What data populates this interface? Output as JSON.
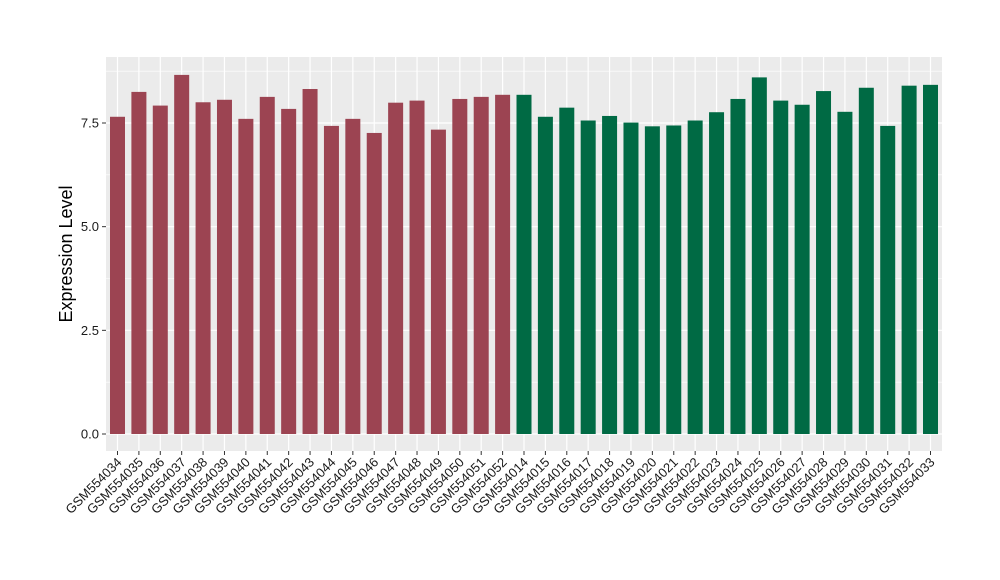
{
  "chart_data": {
    "type": "bar",
    "title": "",
    "xlabel": "",
    "ylabel": "Expression Level",
    "ylim": [
      0,
      8.9
    ],
    "y_ticks": [
      0,
      2.5,
      5,
      7.5
    ],
    "y_tick_labels": [
      "0.0",
      "2.5",
      "5.0",
      "7.5"
    ],
    "grid": true,
    "legend": "none",
    "background": "#ebebeb",
    "grid_color": "#ffffff",
    "categories": [
      "GSM554034",
      "GSM554035",
      "GSM554036",
      "GSM554037",
      "GSM554038",
      "GSM554039",
      "GSM554040",
      "GSM554041",
      "GSM554042",
      "GSM554043",
      "GSM554044",
      "GSM554045",
      "GSM554046",
      "GSM554047",
      "GSM554048",
      "GSM554049",
      "GSM554050",
      "GSM554051",
      "GSM554052",
      "GSM554014",
      "GSM554015",
      "GSM554016",
      "GSM554017",
      "GSM554018",
      "GSM554019",
      "GSM554020",
      "GSM554021",
      "GSM554022",
      "GSM554023",
      "GSM554024",
      "GSM554025",
      "GSM554026",
      "GSM554027",
      "GSM554028",
      "GSM554029",
      "GSM554030",
      "GSM554031",
      "GSM554032",
      "GSM554033"
    ],
    "values": [
      7.65,
      8.25,
      7.92,
      8.66,
      8.0,
      8.06,
      7.6,
      8.13,
      7.84,
      8.32,
      7.43,
      7.6,
      7.26,
      7.99,
      8.04,
      7.34,
      8.08,
      8.13,
      8.18,
      8.18,
      7.65,
      7.87,
      7.56,
      7.67,
      7.51,
      7.42,
      7.44,
      7.56,
      7.76,
      8.08,
      8.6,
      8.04,
      7.94,
      8.27,
      7.77,
      8.35,
      7.43,
      8.4,
      8.42
    ],
    "bar_colors": [
      "#9c4452",
      "#9c4452",
      "#9c4452",
      "#9c4452",
      "#9c4452",
      "#9c4452",
      "#9c4452",
      "#9c4452",
      "#9c4452",
      "#9c4452",
      "#9c4452",
      "#9c4452",
      "#9c4452",
      "#9c4452",
      "#9c4452",
      "#9c4452",
      "#9c4452",
      "#9c4452",
      "#9c4452",
      "#006a44",
      "#006a44",
      "#006a44",
      "#006a44",
      "#006a44",
      "#006a44",
      "#006a44",
      "#006a44",
      "#006a44",
      "#006a44",
      "#006a44",
      "#006a44",
      "#006a44",
      "#006a44",
      "#006a44",
      "#006a44",
      "#006a44",
      "#006a44",
      "#006a44",
      "#006a44"
    ]
  }
}
